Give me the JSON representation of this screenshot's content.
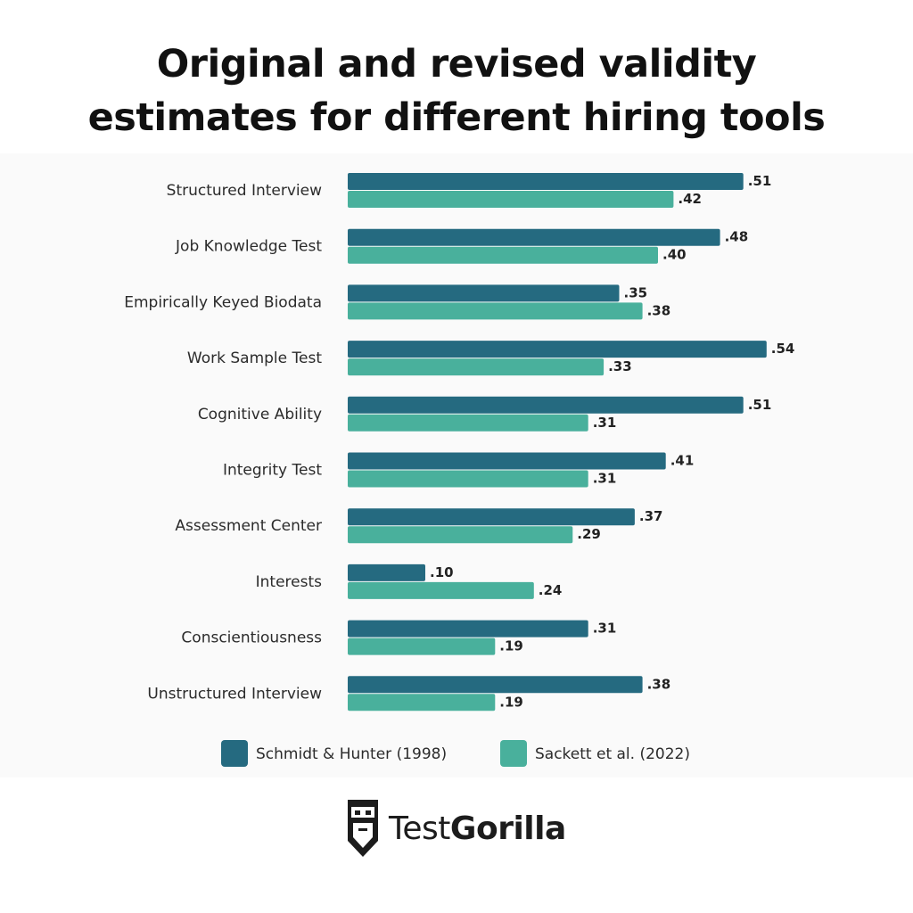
{
  "title": {
    "line1": "Original and revised validity",
    "line2": "estimates for different hiring tools"
  },
  "colors": {
    "series1": "#256a80",
    "series2": "#49b09c"
  },
  "chart_data": {
    "type": "bar",
    "orientation": "horizontal",
    "title": "Original and revised validity estimates for different hiring tools",
    "categories": [
      "Structured Interview",
      "Job Knowledge Test",
      "Empirically Keyed Biodata",
      "Work Sample Test",
      "Cognitive Ability",
      "Integrity Test",
      "Assessment Center",
      "Interests",
      "Conscientiousness",
      "Unstructured Interview"
    ],
    "series": [
      {
        "name": "Schmidt & Hunter (1998)",
        "values": [
          0.51,
          0.48,
          0.35,
          0.54,
          0.51,
          0.41,
          0.37,
          0.1,
          0.31,
          0.38
        ],
        "labels": [
          ".51",
          ".48",
          ".35",
          ".54",
          ".51",
          ".41",
          ".37",
          ".10",
          ".31",
          ".38"
        ]
      },
      {
        "name": "Sackett et al. (2022)",
        "values": [
          0.42,
          0.4,
          0.38,
          0.33,
          0.31,
          0.31,
          0.29,
          0.24,
          0.19,
          0.19
        ],
        "labels": [
          ".42",
          ".40",
          ".38",
          ".33",
          ".31",
          ".31",
          ".29",
          ".24",
          ".19",
          ".19"
        ]
      }
    ],
    "xlim": [
      0,
      0.6
    ],
    "grid": false,
    "legend": "bottom-center"
  },
  "brand": {
    "name_light": "Test",
    "name_bold": "Gorilla",
    "logo_icon": "gorilla-icon"
  }
}
